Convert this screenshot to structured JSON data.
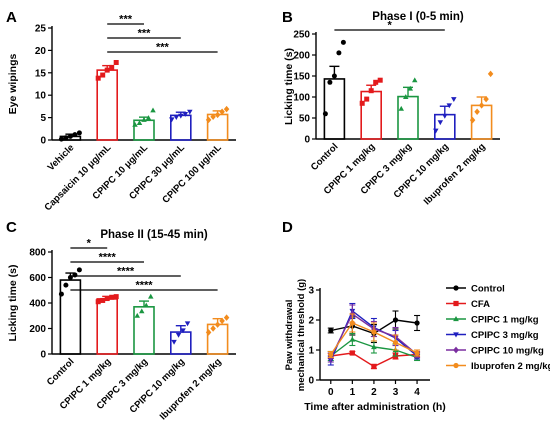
{
  "panels": {
    "A": {
      "label": "A"
    },
    "B": {
      "label": "B"
    },
    "C": {
      "label": "C"
    },
    "D": {
      "label": "D"
    }
  },
  "chart_data": [
    {
      "panel": "A",
      "type": "bar",
      "title": "",
      "ylabel": "Eye wipings",
      "xlabel": "",
      "ylim": [
        0,
        25
      ],
      "yticks": [
        0,
        5,
        10,
        15,
        20,
        25
      ],
      "categories": [
        "Vehicle",
        "Capsaicin 10 μg/mL",
        "CPIPC 10 μg/mL",
        "CPIPC 30 μg/mL",
        "CPIPC 100 μg/mL"
      ],
      "values": [
        0.8,
        15.6,
        4.4,
        5.5,
        5.7
      ],
      "errors": [
        0.5,
        1.0,
        0.7,
        0.7,
        0.8
      ],
      "colors": [
        "#000000",
        "#e31a1c",
        "#1a9641",
        "#1f1fbf",
        "#f28c1e"
      ],
      "markers": [
        "circle",
        "square",
        "triangle",
        "triangle-down",
        "diamond"
      ],
      "points": [
        [
          0.2,
          0.5,
          0.8,
          1.2,
          1.6
        ],
        [
          13.8,
          14.5,
          15.6,
          16.2,
          17.3
        ],
        [
          3.4,
          3.8,
          4.5,
          4.9,
          6.6
        ],
        [
          4.6,
          5.1,
          5.4,
          5.8,
          6.3
        ],
        [
          4.5,
          5.2,
          5.6,
          6.3,
          6.9
        ]
      ],
      "significance": [
        {
          "from": 1,
          "to": 2,
          "label": "***"
        },
        {
          "from": 1,
          "to": 3,
          "label": "***"
        },
        {
          "from": 1,
          "to": 4,
          "label": "***"
        }
      ]
    },
    {
      "panel": "B",
      "type": "bar",
      "title": "Phase I (0-5 min)",
      "ylabel": "Licking time (s)",
      "xlabel": "",
      "ylim": [
        0,
        250
      ],
      "yticks": [
        0,
        50,
        100,
        150,
        200,
        250
      ],
      "categories": [
        "Control",
        "CPIPC 1 mg/kg",
        "CPIPC 3 mg/kg",
        "CPIPC 10 mg/kg",
        "Ibuprofen 2 mg/kg"
      ],
      "values": [
        143,
        113,
        101,
        58,
        80
      ],
      "errors": [
        30,
        15,
        22,
        20,
        20
      ],
      "colors": [
        "#000000",
        "#e31a1c",
        "#1a9641",
        "#1f1fbf",
        "#f28c1e"
      ],
      "markers": [
        "circle",
        "square",
        "triangle",
        "triangle-down",
        "diamond"
      ],
      "points": [
        [
          60,
          135,
          150,
          205,
          230
        ],
        [
          85,
          95,
          115,
          135,
          140
        ],
        [
          72,
          100,
          120,
          140
        ],
        [
          20,
          40,
          55,
          80,
          95
        ],
        [
          45,
          65,
          80,
          95,
          155
        ]
      ],
      "significance": [
        {
          "from": 0,
          "to": 3,
          "label": "*"
        }
      ]
    },
    {
      "panel": "C",
      "type": "bar",
      "title": "Phase II (15-45 min)",
      "ylabel": "Licking time (s)",
      "xlabel": "",
      "ylim": [
        0,
        800
      ],
      "yticks": [
        0,
        200,
        400,
        600,
        800
      ],
      "categories": [
        "Control",
        "CPIPC 1 mg/kg",
        "CPIPC 3 mg/kg",
        "CPIPC 10 mg/kg",
        "Ibuprofen 2 mg/kg"
      ],
      "values": [
        580,
        432,
        370,
        172,
        232
      ],
      "errors": [
        55,
        20,
        45,
        50,
        45
      ],
      "colors": [
        "#000000",
        "#e31a1c",
        "#1a9641",
        "#1f1fbf",
        "#f28c1e"
      ],
      "markers": [
        "circle",
        "square",
        "triangle",
        "triangle-down",
        "diamond"
      ],
      "points": [
        [
          470,
          540,
          600,
          620,
          660
        ],
        [
          410,
          420,
          435,
          445,
          450
        ],
        [
          300,
          335,
          380,
          450
        ],
        [
          95,
          150,
          185,
          240
        ],
        [
          170,
          200,
          230,
          260,
          285
        ]
      ],
      "significance": [
        {
          "from": 0,
          "to": 1,
          "label": "*"
        },
        {
          "from": 0,
          "to": 2,
          "label": "****"
        },
        {
          "from": 0,
          "to": 3,
          "label": "****"
        },
        {
          "from": 0,
          "to": 4,
          "label": "****"
        }
      ]
    },
    {
      "panel": "D",
      "type": "line",
      "title": "",
      "ylabel": "Paw withdrawal mechanical threshold (g)",
      "ylabel_lines": [
        "Paw withdrawal",
        "mechanical threshold (g)"
      ],
      "xlabel": "Time after administration (h)",
      "xlim": [
        -0.5,
        4.6
      ],
      "ylim": [
        0,
        3
      ],
      "xticks": [
        0,
        1,
        2,
        3,
        4
      ],
      "yticks": [
        0,
        1,
        2,
        3
      ],
      "x": [
        0,
        1,
        2,
        3,
        4
      ],
      "legend_position": "right",
      "series": [
        {
          "name": "Control",
          "color": "#000000",
          "marker": "circle",
          "values": [
            1.65,
            1.8,
            1.55,
            2.0,
            1.9
          ],
          "errors": [
            0.08,
            0.3,
            0.3,
            0.3,
            0.25
          ]
        },
        {
          "name": "CFA",
          "color": "#e31a1c",
          "marker": "square",
          "values": [
            0.8,
            0.9,
            0.45,
            0.8,
            0.85
          ],
          "errors": [
            0.08,
            0.05,
            0.07,
            0.1,
            0.08
          ]
        },
        {
          "name": "CPIPC 1 mg/kg",
          "color": "#1a9641",
          "marker": "triangle",
          "values": [
            0.8,
            1.35,
            1.1,
            1.0,
            0.75
          ],
          "errors": [
            0.15,
            0.2,
            0.2,
            0.2,
            0.1
          ]
        },
        {
          "name": "CPIPC 3 mg/kg",
          "color": "#1f1fbf",
          "marker": "triangle-down",
          "values": [
            0.65,
            2.3,
            1.75,
            1.4,
            0.8
          ],
          "errors": [
            0.15,
            0.25,
            0.3,
            0.25,
            0.1
          ]
        },
        {
          "name": "CPIPC 10 mg/kg",
          "color": "#7b2fa0",
          "marker": "diamond",
          "values": [
            0.75,
            2.2,
            1.7,
            1.45,
            0.85
          ],
          "errors": [
            0.15,
            0.3,
            0.25,
            0.3,
            0.1
          ]
        },
        {
          "name": "Ibuprofen 2 mg/kg",
          "color": "#f28c1e",
          "marker": "circle",
          "values": [
            0.85,
            1.9,
            1.6,
            1.25,
            0.9
          ],
          "errors": [
            0.1,
            0.3,
            0.3,
            0.25,
            0.1
          ]
        }
      ]
    }
  ]
}
